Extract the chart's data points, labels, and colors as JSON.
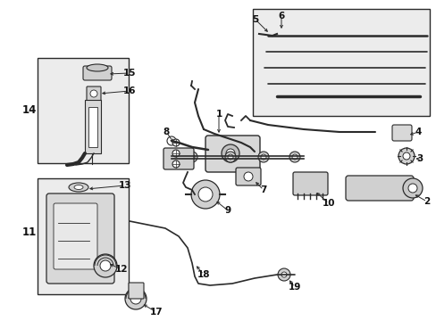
{
  "bg_color": "#ffffff",
  "fig_width": 4.89,
  "fig_height": 3.6,
  "dpi": 100,
  "lc": "#2a2a2a",
  "fill_box": "#e8e8e8",
  "fs": 7.5
}
